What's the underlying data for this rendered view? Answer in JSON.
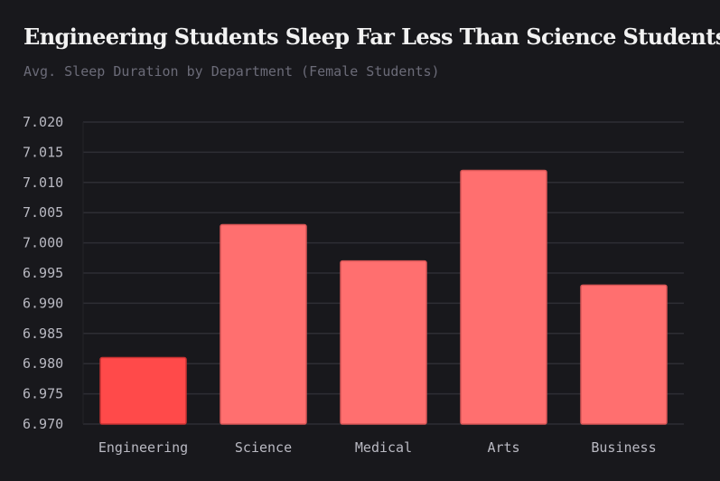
{
  "chart_data": {
    "type": "bar",
    "title": "Engineering Students Sleep Far Less Than Science Students",
    "subtitle": "Avg. Sleep Duration by Department (Female Students)",
    "xlabel": "",
    "ylabel": "",
    "categories": [
      "Engineering",
      "Science",
      "Medical",
      "Arts",
      "Business"
    ],
    "values": [
      6.981,
      7.003,
      6.997,
      7.012,
      6.993
    ],
    "ylim": [
      6.97,
      7.02
    ],
    "yticks": [
      "6.970",
      "6.975",
      "6.980",
      "6.985",
      "6.990",
      "6.995",
      "7.000",
      "7.005",
      "7.010",
      "7.015",
      "7.020"
    ],
    "grid": true,
    "highlight_category": "Engineering",
    "colors": {
      "highlight": "#ff4a4a",
      "bar": "#ff6f6f",
      "highlight_border": "#c83232",
      "bar_border": "#d85656",
      "grid": "#2e2e34",
      "background": "#18181c"
    }
  }
}
